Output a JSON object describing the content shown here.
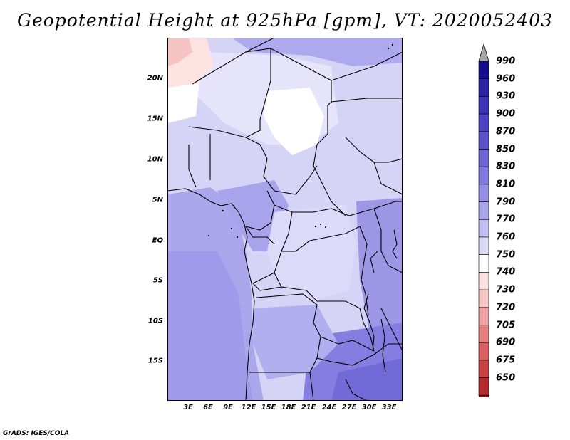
{
  "title": "Geopotential Height at 925hPa [gpm], VT: 2020052403",
  "credit": "GrADS: IGES/COLA",
  "map": {
    "lat_ticks": [
      "20N",
      "15N",
      "10N",
      "5N",
      "EQ",
      "5S",
      "10S",
      "15S"
    ],
    "lon_ticks": [
      "3E",
      "6E",
      "9E",
      "12E",
      "15E",
      "18E",
      "21E",
      "24E",
      "27E",
      "30E",
      "33E"
    ],
    "lat_range": [
      -20,
      24.5
    ],
    "lon_range": [
      0,
      35
    ]
  },
  "colorbar": {
    "levels": [
      "990",
      "960",
      "930",
      "900",
      "870",
      "850",
      "830",
      "810",
      "790",
      "770",
      "760",
      "750",
      "740",
      "730",
      "720",
      "705",
      "690",
      "675",
      "650"
    ],
    "colors": [
      "#150e8c",
      "#2b22a6",
      "#3b33b4",
      "#4a42c0",
      "#5c53cb",
      "#6e66d4",
      "#8179dd",
      "#958ee4",
      "#aaa4ec",
      "#c2bef2",
      "#dcdaf7",
      "#ffffff",
      "#fde2e2",
      "#f7c4c4",
      "#f0a2a2",
      "#e58080",
      "#d96060",
      "#c84444",
      "#b22a2a",
      "#9a1414"
    ],
    "top_arrow_color": "#a8a8a8",
    "bottom_arrow_color": "#9a1414"
  }
}
